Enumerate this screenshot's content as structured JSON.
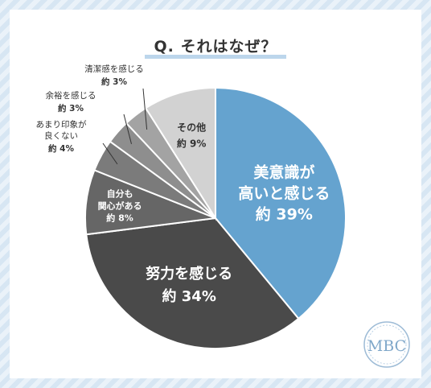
{
  "chart_data": {
    "type": "pie",
    "title": "Q. それはなぜ？",
    "slices": [
      {
        "label_lines": [
          "美意識が",
          "高いと感じる"
        ],
        "value_label": "約 39%",
        "value": 39,
        "color": "#65a3cf",
        "text_color": "#ffffff",
        "inside": true
      },
      {
        "label_lines": [
          "努力を感じる"
        ],
        "value_label": "約 34%",
        "value": 34,
        "color": "#4a4a4a",
        "text_color": "#ffffff",
        "inside": true
      },
      {
        "label_lines": [
          "自分も",
          "関心がある"
        ],
        "value_label": "約 8%",
        "value": 8,
        "color": "#666666",
        "text_color": "#ffffff",
        "inside": true
      },
      {
        "label_lines": [
          "あまり印象が",
          "良くない"
        ],
        "value_label": "約 4%",
        "value": 4,
        "color": "#7b7b7b",
        "text_color": "#333333",
        "inside": false
      },
      {
        "label_lines": [
          "余裕を感じる"
        ],
        "value_label": "約 3%",
        "value": 3,
        "color": "#8e8e8e",
        "text_color": "#333333",
        "inside": false
      },
      {
        "label_lines": [
          "清潔感を感じる"
        ],
        "value_label": "約 3%",
        "value": 3,
        "color": "#a3a3a3",
        "text_color": "#333333",
        "inside": false
      },
      {
        "label_lines": [
          "その他"
        ],
        "value_label": "約 9%",
        "value": 9,
        "color": "#d2d2d2",
        "text_color": "#333333",
        "inside": true
      }
    ]
  },
  "logo": {
    "text": "MBC",
    "color": "#7fa7c9"
  }
}
